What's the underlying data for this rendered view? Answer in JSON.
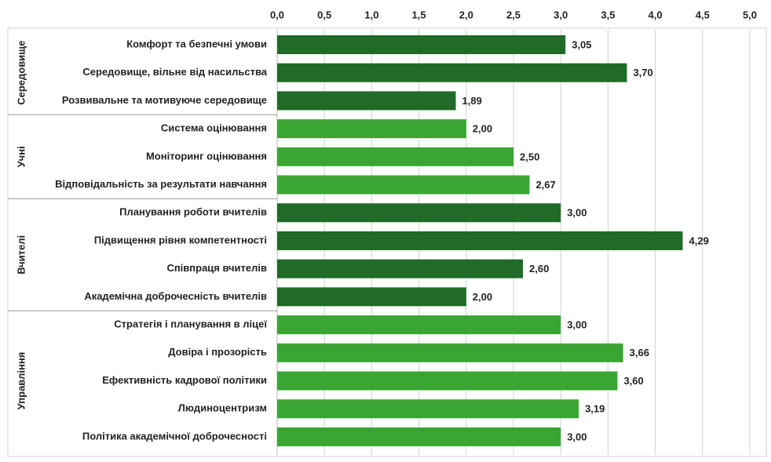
{
  "chart_data": {
    "type": "bar",
    "orientation": "horizontal",
    "xlim": [
      0,
      5
    ],
    "xticks": [
      {
        "value": 0,
        "label": "0,0"
      },
      {
        "value": 0.5,
        "label": "0,5"
      },
      {
        "value": 1,
        "label": "1,0"
      },
      {
        "value": 1.5,
        "label": "1,5"
      },
      {
        "value": 2,
        "label": "2,0"
      },
      {
        "value": 2.5,
        "label": "2,5"
      },
      {
        "value": 3,
        "label": "3,0"
      },
      {
        "value": 3.5,
        "label": "3,5"
      },
      {
        "value": 4,
        "label": "4,0"
      },
      {
        "value": 4.5,
        "label": "4,5"
      },
      {
        "value": 5,
        "label": "5,0"
      }
    ],
    "grid": true,
    "series": [
      {
        "name": "Середовище",
        "color": "#1f6b27",
        "categories": [
          "Комфорт та безпечні умови",
          "Середовище, вільне від насильства",
          "Розвивальне та мотивуюче середовище"
        ],
        "values": [
          3.05,
          3.7,
          1.89
        ],
        "value_labels": [
          "3,05",
          "3,70",
          "1,89"
        ]
      },
      {
        "name": "Учні",
        "color": "#3aa533",
        "categories": [
          "Система оцінювання",
          "Моніторинг оцінювання",
          "Відповідальність за результати навчання"
        ],
        "values": [
          2.0,
          2.5,
          2.67
        ],
        "value_labels": [
          "2,00",
          "2,50",
          "2,67"
        ]
      },
      {
        "name": "Вчителі",
        "color": "#1f6b27",
        "categories": [
          "Планування роботи вчителів",
          "Підвищення рівня компетентності",
          "Співпраця вчителів",
          "Академічна доброчесність вчителів"
        ],
        "values": [
          3.0,
          4.29,
          2.6,
          2.0
        ],
        "value_labels": [
          "3,00",
          "4,29",
          "2,60",
          "2,00"
        ]
      },
      {
        "name": "Управління",
        "color": "#3aa533",
        "categories": [
          "Стратегія і планування в ліцеї",
          "Довіра і прозорість",
          "Ефективність кадрової політики",
          "Людиноцентризм",
          "Політика академічної доброчесності"
        ],
        "values": [
          3.0,
          3.66,
          3.6,
          3.19,
          3.0
        ],
        "value_labels": [
          "3,00",
          "3,66",
          "3,60",
          "3,19",
          "3,00"
        ]
      }
    ]
  }
}
